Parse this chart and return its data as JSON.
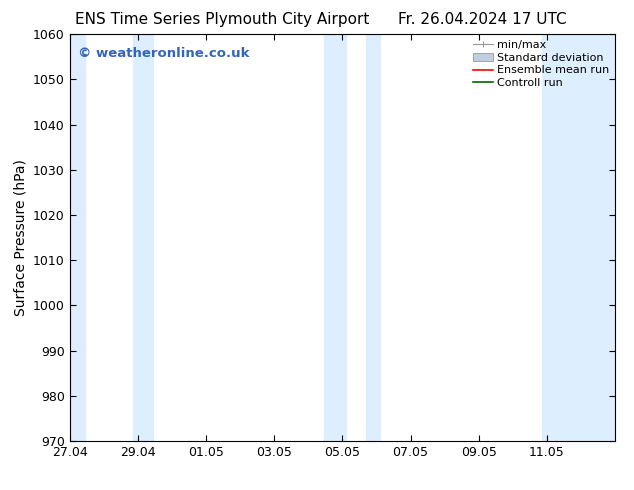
{
  "title_left": "ENS Time Series Plymouth City Airport",
  "title_right": "Fr. 26.04.2024 17 UTC",
  "ylabel": "Surface Pressure (hPa)",
  "ylim": [
    970,
    1060
  ],
  "yticks": [
    970,
    980,
    990,
    1000,
    1010,
    1020,
    1030,
    1040,
    1050,
    1060
  ],
  "xtick_labels": [
    "27.04",
    "29.04",
    "01.05",
    "03.05",
    "05.05",
    "07.05",
    "09.05",
    "11.05"
  ],
  "xlim": [
    0,
    16
  ],
  "background_color": "#ffffff",
  "plot_bg_color": "#ffffff",
  "shaded_bands": [
    {
      "x_start": 0.0,
      "x_end": 0.5
    },
    {
      "x_start": 1.8,
      "x_end": 2.5
    },
    {
      "x_start": 7.5,
      "x_end": 8.5
    },
    {
      "x_start": 9.0,
      "x_end": 9.5
    },
    {
      "x_start": 13.8,
      "x_end": 16.0
    }
  ],
  "band_color": "#ddeeff",
  "watermark_text": "© weatheronline.co.uk",
  "watermark_color": "#3366bb",
  "title_fontsize": 11,
  "tick_fontsize": 9,
  "ylabel_fontsize": 10,
  "legend_fontsize": 8
}
